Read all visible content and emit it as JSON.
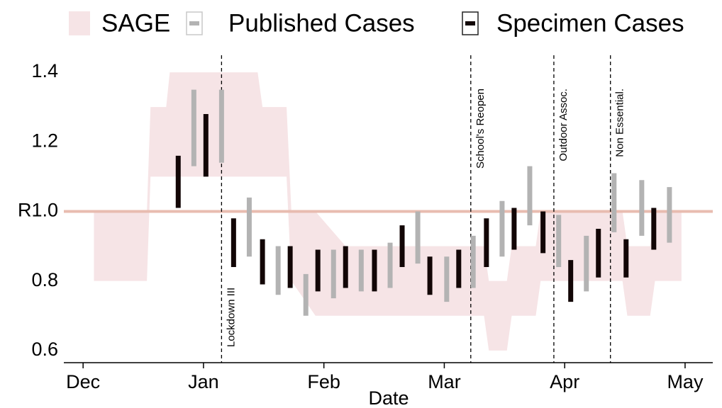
{
  "chart_data": {
    "type": "range",
    "x_label": "Date",
    "xlim": [
      -0.16,
      5.23
    ],
    "xticks": [
      {
        "value": 0,
        "label": "Dec"
      },
      {
        "value": 1,
        "label": "Jan"
      },
      {
        "value": 2,
        "label": "Feb"
      },
      {
        "value": 3,
        "label": "Mar"
      },
      {
        "value": 4,
        "label": "Apr"
      },
      {
        "value": 5,
        "label": "May"
      }
    ],
    "ylim": [
      0.565,
      1.445
    ],
    "yticks": [
      0.6,
      0.8,
      {
        "value": 1.0,
        "label": "R1.0"
      },
      1.2,
      1.4
    ],
    "legend": "top",
    "reference_line": {
      "value": 1.0,
      "color": "#e8bcb0"
    },
    "band": {
      "name": "SAGE",
      "color": "#f6e4e6",
      "x": [
        0.09,
        0.53,
        0.56,
        0.69,
        0.72,
        1.45,
        1.49,
        1.69,
        1.73,
        1.93,
        2.18,
        3.33,
        3.37,
        3.52,
        3.56,
        3.76,
        3.8,
        4.48,
        4.52,
        4.71,
        4.75,
        4.97
      ],
      "low": [
        0.8,
        0.8,
        1.1,
        1.1,
        1.1,
        1.1,
        1.1,
        1.1,
        0.8,
        0.7,
        0.7,
        0.7,
        0.6,
        0.6,
        0.7,
        0.7,
        0.8,
        0.8,
        0.7,
        0.7,
        0.8,
        0.8
      ],
      "high": [
        1.0,
        1.0,
        1.3,
        1.3,
        1.4,
        1.4,
        1.3,
        1.3,
        1.0,
        1.0,
        0.9,
        0.9,
        0.8,
        0.8,
        0.9,
        0.9,
        1.0,
        1.0,
        0.9,
        0.9,
        1.0,
        1.0
      ]
    },
    "series": [
      {
        "name": "Published Cases",
        "color": "#b3b3b3",
        "x": [
          0.92,
          1.15,
          1.38,
          1.62,
          1.85,
          2.08,
          2.31,
          2.55,
          2.78,
          3.02,
          3.24,
          3.48,
          3.71,
          3.95,
          4.18,
          4.41,
          4.64,
          4.87
        ],
        "low": [
          1.13,
          1.14,
          0.87,
          0.76,
          0.7,
          0.75,
          0.77,
          0.78,
          0.85,
          0.74,
          0.78,
          0.87,
          0.96,
          0.84,
          0.77,
          0.94,
          0.93,
          0.91
        ],
        "high": [
          1.35,
          1.35,
          1.04,
          0.9,
          0.82,
          0.89,
          0.89,
          0.91,
          1.0,
          0.87,
          0.93,
          1.03,
          1.13,
          0.99,
          0.93,
          1.11,
          1.09,
          1.07
        ]
      },
      {
        "name": "Specimen Cases",
        "color": "#120606",
        "x": [
          0.79,
          1.02,
          1.25,
          1.49,
          1.72,
          1.95,
          2.18,
          2.42,
          2.65,
          2.88,
          3.12,
          3.35,
          3.58,
          3.82,
          4.05,
          4.28,
          4.51,
          4.74
        ],
        "low": [
          1.01,
          1.1,
          0.84,
          0.79,
          0.78,
          0.77,
          0.78,
          0.77,
          0.84,
          0.76,
          0.78,
          0.84,
          0.89,
          0.88,
          0.74,
          0.81,
          0.81,
          0.89
        ],
        "high": [
          1.16,
          1.28,
          0.98,
          0.92,
          0.9,
          0.89,
          0.9,
          0.89,
          0.96,
          0.87,
          0.89,
          0.98,
          1.01,
          1.0,
          0.86,
          0.95,
          0.92,
          1.01
        ]
      }
    ],
    "events": [
      {
        "x": 1.15,
        "label": "Lockdown III"
      },
      {
        "x": 3.22,
        "label": "School's Reopen"
      },
      {
        "x": 3.91,
        "label": "Outdoor Assoc."
      },
      {
        "x": 4.38,
        "label": "Non Essential."
      }
    ]
  }
}
